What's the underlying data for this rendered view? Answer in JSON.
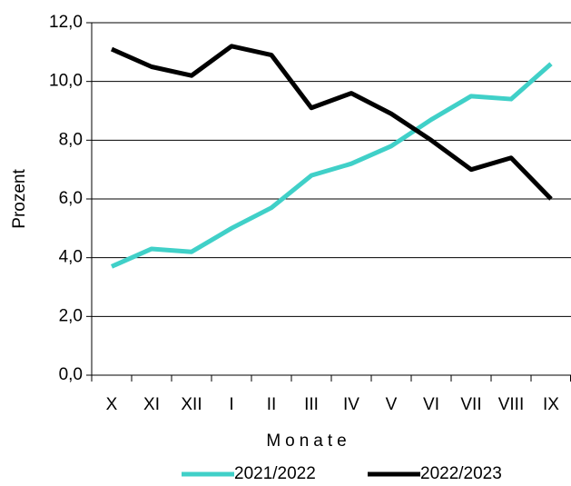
{
  "chart_data": {
    "type": "line",
    "xlabel": "Monate",
    "ylabel": "Prozent",
    "categories": [
      "X",
      "XI",
      "XII",
      "I",
      "II",
      "III",
      "IV",
      "V",
      "VI",
      "VII",
      "VIII",
      "IX"
    ],
    "series": [
      {
        "name": "2021/2022",
        "color": "#40d0c8",
        "values": [
          3.7,
          4.3,
          4.2,
          5.0,
          5.7,
          6.8,
          7.2,
          7.8,
          8.7,
          9.5,
          9.4,
          10.6
        ]
      },
      {
        "name": "2022/2023",
        "color": "#000000",
        "values": [
          11.1,
          10.5,
          10.2,
          11.2,
          10.9,
          9.1,
          9.6,
          8.9,
          8.0,
          7.0,
          7.4,
          6.0
        ]
      }
    ],
    "ylim": [
      0,
      12
    ],
    "yticks": [
      {
        "value": 0,
        "label": "0,0"
      },
      {
        "value": 2,
        "label": "2,0"
      },
      {
        "value": 4,
        "label": "4,0"
      },
      {
        "value": 6,
        "label": "6,0"
      },
      {
        "value": 8,
        "label": "8,0"
      },
      {
        "value": 10,
        "label": "10,0"
      },
      {
        "value": 12,
        "label": "12,0"
      }
    ],
    "grid": true,
    "legend": "bottom"
  }
}
